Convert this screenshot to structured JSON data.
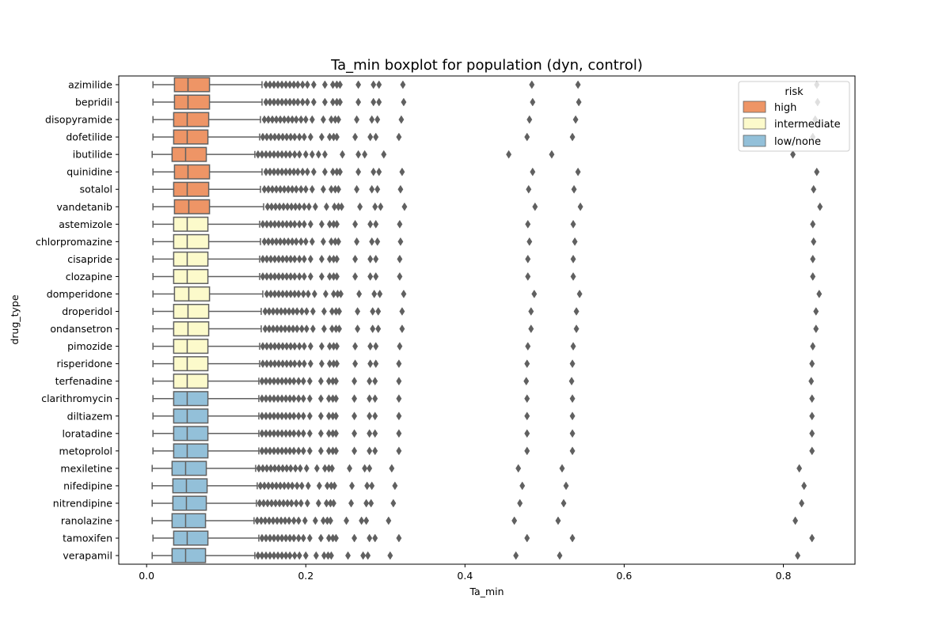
{
  "chart_data": {
    "type": "boxplot",
    "orientation": "horizontal",
    "title": "Ta_min boxplot for population (dyn, control)",
    "xlabel": "Ta_min",
    "ylabel": "drug_type",
    "xlim": [
      -0.035,
      0.89
    ],
    "xticks": [
      0.0,
      0.2,
      0.4,
      0.6,
      0.8
    ],
    "xtick_labels": [
      "0.0",
      "0.2",
      "0.4",
      "0.6",
      "0.8"
    ],
    "grid": false,
    "legend": {
      "title": "risk",
      "placement": "top-right",
      "entries": [
        {
          "label": "high",
          "color": "#ee9566"
        },
        {
          "label": "intermediate",
          "color": "#fcfacb"
        },
        {
          "label": "low/none",
          "color": "#93c0d9"
        }
      ]
    },
    "colors": {
      "high": "#ee9566",
      "intermediate": "#fcfacb",
      "low/none": "#93c0d9",
      "line": "#606060",
      "axis": "#000000"
    },
    "categories": [
      "azimilide",
      "bepridil",
      "disopyramide",
      "dofetilide",
      "ibutilide",
      "quinidine",
      "sotalol",
      "vandetanib",
      "astemizole",
      "chlorpromazine",
      "cisapride",
      "clozapine",
      "domperidone",
      "droperidol",
      "ondansetron",
      "pimozide",
      "risperidone",
      "terfenadine",
      "clarithromycin",
      "diltiazem",
      "loratadine",
      "metoprolol",
      "mexiletine",
      "nifedipine",
      "nitrendipine",
      "ranolazine",
      "tamoxifen",
      "verapamil"
    ],
    "boxes": [
      {
        "name": "azimilide",
        "risk": "high",
        "whislo": 0.008,
        "q1": 0.035,
        "med": 0.052,
        "q3": 0.079,
        "whishi": 0.145,
        "fliers": [
          0.15,
          0.155,
          0.16,
          0.165,
          0.17,
          0.175,
          0.18,
          0.185,
          0.19,
          0.196,
          0.202,
          0.21,
          0.224,
          0.234,
          0.239,
          0.243,
          0.266,
          0.285,
          0.292,
          0.322,
          0.484,
          0.542,
          0.842
        ]
      },
      {
        "name": "bepridil",
        "risk": "high",
        "whislo": 0.008,
        "q1": 0.035,
        "med": 0.052,
        "q3": 0.079,
        "whishi": 0.145,
        "fliers": [
          0.15,
          0.155,
          0.16,
          0.165,
          0.17,
          0.175,
          0.18,
          0.185,
          0.19,
          0.196,
          0.202,
          0.21,
          0.224,
          0.234,
          0.239,
          0.243,
          0.266,
          0.285,
          0.292,
          0.323,
          0.485,
          0.543,
          0.843
        ]
      },
      {
        "name": "disopyramide",
        "risk": "high",
        "whislo": 0.008,
        "q1": 0.034,
        "med": 0.051,
        "q3": 0.078,
        "whishi": 0.143,
        "fliers": [
          0.148,
          0.153,
          0.158,
          0.163,
          0.168,
          0.173,
          0.178,
          0.183,
          0.188,
          0.194,
          0.2,
          0.208,
          0.222,
          0.232,
          0.237,
          0.241,
          0.264,
          0.283,
          0.29,
          0.32,
          0.481,
          0.539,
          0.84
        ]
      },
      {
        "name": "dofetilide",
        "risk": "high",
        "whislo": 0.008,
        "q1": 0.034,
        "med": 0.051,
        "q3": 0.077,
        "whishi": 0.142,
        "fliers": [
          0.146,
          0.151,
          0.156,
          0.161,
          0.166,
          0.171,
          0.176,
          0.181,
          0.186,
          0.192,
          0.198,
          0.206,
          0.22,
          0.23,
          0.235,
          0.239,
          0.262,
          0.281,
          0.288,
          0.317,
          0.478,
          0.535,
          0.837
        ]
      },
      {
        "name": "ibutilide",
        "risk": "high",
        "whislo": 0.007,
        "q1": 0.032,
        "med": 0.049,
        "q3": 0.075,
        "whishi": 0.136,
        "fliers": [
          0.14,
          0.145,
          0.15,
          0.155,
          0.16,
          0.165,
          0.17,
          0.175,
          0.18,
          0.186,
          0.192,
          0.2,
          0.208,
          0.216,
          0.224,
          0.246,
          0.266,
          0.274,
          0.298,
          0.455,
          0.509,
          0.812
        ]
      },
      {
        "name": "quinidine",
        "risk": "high",
        "whislo": 0.008,
        "q1": 0.035,
        "med": 0.052,
        "q3": 0.079,
        "whishi": 0.145,
        "fliers": [
          0.15,
          0.155,
          0.16,
          0.165,
          0.17,
          0.175,
          0.18,
          0.185,
          0.19,
          0.196,
          0.202,
          0.21,
          0.224,
          0.234,
          0.239,
          0.243,
          0.266,
          0.285,
          0.292,
          0.321,
          0.485,
          0.542,
          0.842
        ]
      },
      {
        "name": "sotalol",
        "risk": "high",
        "whislo": 0.008,
        "q1": 0.034,
        "med": 0.051,
        "q3": 0.078,
        "whishi": 0.143,
        "fliers": [
          0.148,
          0.153,
          0.158,
          0.163,
          0.168,
          0.173,
          0.178,
          0.183,
          0.188,
          0.194,
          0.2,
          0.208,
          0.222,
          0.232,
          0.237,
          0.241,
          0.264,
          0.283,
          0.29,
          0.319,
          0.48,
          0.537,
          0.838
        ]
      },
      {
        "name": "vandetanib",
        "risk": "high",
        "whislo": 0.008,
        "q1": 0.035,
        "med": 0.053,
        "q3": 0.079,
        "whishi": 0.147,
        "fliers": [
          0.152,
          0.157,
          0.162,
          0.167,
          0.172,
          0.177,
          0.182,
          0.187,
          0.192,
          0.198,
          0.204,
          0.212,
          0.226,
          0.236,
          0.241,
          0.245,
          0.268,
          0.287,
          0.294,
          0.324,
          0.488,
          0.545,
          0.846
        ]
      },
      {
        "name": "astemizole",
        "risk": "intermediate",
        "whislo": 0.008,
        "q1": 0.034,
        "med": 0.051,
        "q3": 0.077,
        "whishi": 0.142,
        "fliers": [
          0.146,
          0.151,
          0.156,
          0.161,
          0.166,
          0.171,
          0.176,
          0.181,
          0.186,
          0.192,
          0.198,
          0.206,
          0.22,
          0.23,
          0.235,
          0.239,
          0.262,
          0.281,
          0.288,
          0.318,
          0.479,
          0.536,
          0.837
        ]
      },
      {
        "name": "chlorpromazine",
        "risk": "intermediate",
        "whislo": 0.008,
        "q1": 0.034,
        "med": 0.051,
        "q3": 0.078,
        "whishi": 0.143,
        "fliers": [
          0.148,
          0.153,
          0.158,
          0.163,
          0.168,
          0.173,
          0.178,
          0.183,
          0.188,
          0.194,
          0.2,
          0.208,
          0.222,
          0.232,
          0.237,
          0.241,
          0.264,
          0.283,
          0.29,
          0.319,
          0.481,
          0.538,
          0.838
        ]
      },
      {
        "name": "cisapride",
        "risk": "intermediate",
        "whislo": 0.008,
        "q1": 0.034,
        "med": 0.051,
        "q3": 0.077,
        "whishi": 0.142,
        "fliers": [
          0.146,
          0.151,
          0.156,
          0.161,
          0.166,
          0.171,
          0.176,
          0.181,
          0.186,
          0.192,
          0.198,
          0.206,
          0.22,
          0.23,
          0.235,
          0.239,
          0.262,
          0.281,
          0.288,
          0.318,
          0.479,
          0.536,
          0.837
        ]
      },
      {
        "name": "clozapine",
        "risk": "intermediate",
        "whislo": 0.008,
        "q1": 0.034,
        "med": 0.051,
        "q3": 0.077,
        "whishi": 0.142,
        "fliers": [
          0.146,
          0.151,
          0.156,
          0.161,
          0.166,
          0.171,
          0.176,
          0.181,
          0.186,
          0.192,
          0.198,
          0.206,
          0.22,
          0.23,
          0.235,
          0.239,
          0.262,
          0.281,
          0.288,
          0.318,
          0.479,
          0.536,
          0.837
        ]
      },
      {
        "name": "domperidone",
        "risk": "intermediate",
        "whislo": 0.008,
        "q1": 0.035,
        "med": 0.053,
        "q3": 0.079,
        "whishi": 0.146,
        "fliers": [
          0.151,
          0.156,
          0.161,
          0.166,
          0.171,
          0.176,
          0.181,
          0.186,
          0.191,
          0.197,
          0.203,
          0.211,
          0.225,
          0.235,
          0.24,
          0.244,
          0.267,
          0.286,
          0.293,
          0.323,
          0.487,
          0.544,
          0.845
        ]
      },
      {
        "name": "droperidol",
        "risk": "intermediate",
        "whislo": 0.008,
        "q1": 0.034,
        "med": 0.052,
        "q3": 0.078,
        "whishi": 0.144,
        "fliers": [
          0.149,
          0.154,
          0.159,
          0.164,
          0.169,
          0.174,
          0.179,
          0.184,
          0.189,
          0.195,
          0.201,
          0.209,
          0.223,
          0.233,
          0.238,
          0.242,
          0.265,
          0.284,
          0.291,
          0.321,
          0.483,
          0.54,
          0.841
        ]
      },
      {
        "name": "ondansetron",
        "risk": "intermediate",
        "whislo": 0.008,
        "q1": 0.034,
        "med": 0.052,
        "q3": 0.078,
        "whishi": 0.144,
        "fliers": [
          0.149,
          0.154,
          0.159,
          0.164,
          0.169,
          0.174,
          0.179,
          0.184,
          0.189,
          0.195,
          0.201,
          0.209,
          0.223,
          0.233,
          0.238,
          0.242,
          0.265,
          0.284,
          0.291,
          0.321,
          0.483,
          0.54,
          0.841
        ]
      },
      {
        "name": "pimozide",
        "risk": "intermediate",
        "whislo": 0.008,
        "q1": 0.034,
        "med": 0.051,
        "q3": 0.077,
        "whishi": 0.142,
        "fliers": [
          0.146,
          0.151,
          0.156,
          0.161,
          0.166,
          0.171,
          0.176,
          0.181,
          0.186,
          0.192,
          0.198,
          0.206,
          0.22,
          0.23,
          0.235,
          0.239,
          0.262,
          0.281,
          0.288,
          0.318,
          0.479,
          0.536,
          0.837
        ]
      },
      {
        "name": "risperidone",
        "risk": "intermediate",
        "whislo": 0.008,
        "q1": 0.034,
        "med": 0.051,
        "q3": 0.077,
        "whishi": 0.142,
        "fliers": [
          0.146,
          0.151,
          0.156,
          0.161,
          0.166,
          0.171,
          0.176,
          0.181,
          0.186,
          0.192,
          0.198,
          0.206,
          0.22,
          0.23,
          0.235,
          0.239,
          0.262,
          0.281,
          0.288,
          0.317,
          0.478,
          0.535,
          0.836
        ]
      },
      {
        "name": "terfenadine",
        "risk": "intermediate",
        "whislo": 0.008,
        "q1": 0.034,
        "med": 0.051,
        "q3": 0.077,
        "whishi": 0.141,
        "fliers": [
          0.145,
          0.15,
          0.155,
          0.16,
          0.165,
          0.17,
          0.175,
          0.18,
          0.185,
          0.191,
          0.197,
          0.205,
          0.219,
          0.229,
          0.234,
          0.238,
          0.261,
          0.28,
          0.287,
          0.317,
          0.477,
          0.534,
          0.835
        ]
      },
      {
        "name": "clarithromycin",
        "risk": "low/none",
        "whislo": 0.008,
        "q1": 0.034,
        "med": 0.051,
        "q3": 0.077,
        "whishi": 0.141,
        "fliers": [
          0.145,
          0.15,
          0.155,
          0.16,
          0.165,
          0.17,
          0.175,
          0.18,
          0.185,
          0.191,
          0.197,
          0.205,
          0.219,
          0.229,
          0.234,
          0.238,
          0.261,
          0.28,
          0.287,
          0.317,
          0.478,
          0.535,
          0.836
        ]
      },
      {
        "name": "diltiazem",
        "risk": "low/none",
        "whislo": 0.008,
        "q1": 0.034,
        "med": 0.051,
        "q3": 0.077,
        "whishi": 0.141,
        "fliers": [
          0.145,
          0.15,
          0.155,
          0.16,
          0.165,
          0.17,
          0.175,
          0.18,
          0.185,
          0.191,
          0.197,
          0.205,
          0.219,
          0.229,
          0.234,
          0.238,
          0.261,
          0.28,
          0.287,
          0.317,
          0.478,
          0.535,
          0.836
        ]
      },
      {
        "name": "loratadine",
        "risk": "low/none",
        "whislo": 0.008,
        "q1": 0.034,
        "med": 0.051,
        "q3": 0.077,
        "whishi": 0.141,
        "fliers": [
          0.145,
          0.15,
          0.155,
          0.16,
          0.165,
          0.17,
          0.175,
          0.18,
          0.185,
          0.191,
          0.197,
          0.205,
          0.219,
          0.229,
          0.234,
          0.238,
          0.261,
          0.28,
          0.287,
          0.317,
          0.478,
          0.535,
          0.836
        ]
      },
      {
        "name": "metoprolol",
        "risk": "low/none",
        "whislo": 0.008,
        "q1": 0.034,
        "med": 0.051,
        "q3": 0.077,
        "whishi": 0.141,
        "fliers": [
          0.145,
          0.15,
          0.155,
          0.16,
          0.165,
          0.17,
          0.175,
          0.18,
          0.185,
          0.191,
          0.197,
          0.205,
          0.219,
          0.229,
          0.234,
          0.238,
          0.261,
          0.28,
          0.287,
          0.317,
          0.478,
          0.535,
          0.836
        ]
      },
      {
        "name": "mexiletine",
        "risk": "low/none",
        "whislo": 0.007,
        "q1": 0.032,
        "med": 0.049,
        "q3": 0.075,
        "whishi": 0.137,
        "fliers": [
          0.141,
          0.146,
          0.151,
          0.156,
          0.161,
          0.166,
          0.171,
          0.176,
          0.181,
          0.187,
          0.193,
          0.201,
          0.214,
          0.224,
          0.229,
          0.233,
          0.255,
          0.274,
          0.28,
          0.308,
          0.467,
          0.522,
          0.82
        ]
      },
      {
        "name": "nifedipine",
        "risk": "low/none",
        "whislo": 0.007,
        "q1": 0.033,
        "med": 0.05,
        "q3": 0.076,
        "whishi": 0.139,
        "fliers": [
          0.143,
          0.148,
          0.153,
          0.158,
          0.163,
          0.168,
          0.173,
          0.178,
          0.183,
          0.189,
          0.195,
          0.203,
          0.217,
          0.227,
          0.232,
          0.236,
          0.258,
          0.277,
          0.283,
          0.312,
          0.472,
          0.527,
          0.826
        ]
      },
      {
        "name": "nitrendipine",
        "risk": "low/none",
        "whislo": 0.007,
        "q1": 0.033,
        "med": 0.05,
        "q3": 0.075,
        "whishi": 0.138,
        "fliers": [
          0.142,
          0.147,
          0.152,
          0.157,
          0.162,
          0.167,
          0.172,
          0.177,
          0.182,
          0.188,
          0.194,
          0.202,
          0.216,
          0.226,
          0.231,
          0.235,
          0.257,
          0.276,
          0.282,
          0.31,
          0.469,
          0.524,
          0.823
        ]
      },
      {
        "name": "ranolazine",
        "risk": "low/none",
        "whislo": 0.007,
        "q1": 0.032,
        "med": 0.049,
        "q3": 0.074,
        "whishi": 0.135,
        "fliers": [
          0.139,
          0.144,
          0.149,
          0.154,
          0.159,
          0.164,
          0.169,
          0.174,
          0.179,
          0.185,
          0.191,
          0.199,
          0.212,
          0.222,
          0.227,
          0.231,
          0.251,
          0.27,
          0.276,
          0.304,
          0.462,
          0.517,
          0.815
        ]
      },
      {
        "name": "tamoxifen",
        "risk": "low/none",
        "whislo": 0.008,
        "q1": 0.034,
        "med": 0.051,
        "q3": 0.077,
        "whishi": 0.141,
        "fliers": [
          0.145,
          0.15,
          0.155,
          0.16,
          0.165,
          0.17,
          0.175,
          0.18,
          0.185,
          0.191,
          0.197,
          0.205,
          0.219,
          0.229,
          0.234,
          0.238,
          0.261,
          0.28,
          0.287,
          0.317,
          0.478,
          0.535,
          0.836
        ]
      },
      {
        "name": "verapamil",
        "risk": "low/none",
        "whislo": 0.007,
        "q1": 0.032,
        "med": 0.049,
        "q3": 0.074,
        "whishi": 0.136,
        "fliers": [
          0.14,
          0.145,
          0.15,
          0.155,
          0.16,
          0.165,
          0.17,
          0.175,
          0.18,
          0.186,
          0.192,
          0.2,
          0.213,
          0.223,
          0.228,
          0.232,
          0.253,
          0.272,
          0.278,
          0.306,
          0.464,
          0.519,
          0.818
        ]
      }
    ]
  }
}
